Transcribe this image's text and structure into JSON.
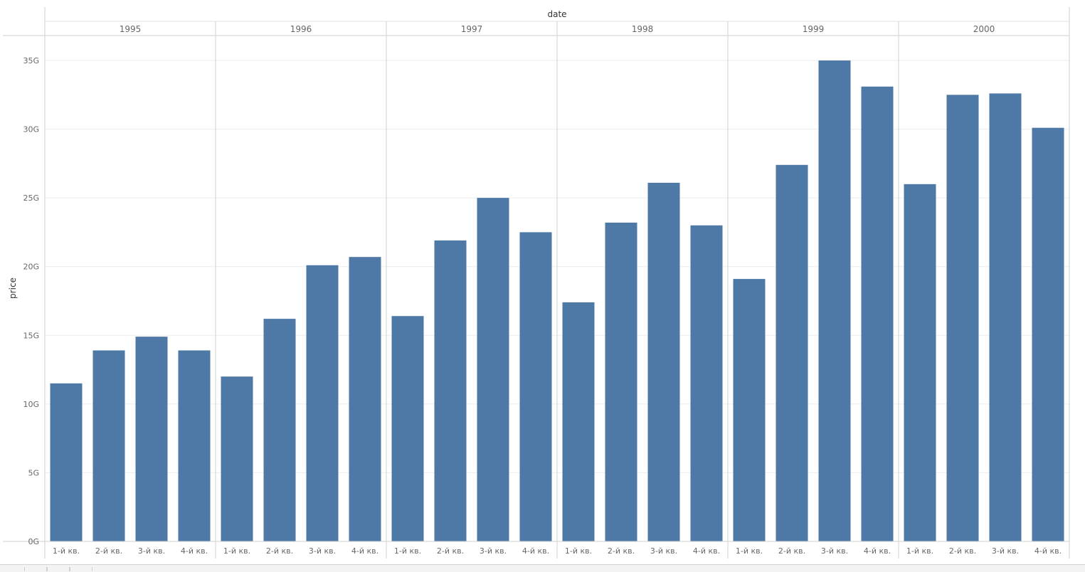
{
  "chart_data": {
    "type": "bar",
    "xlabel": "date",
    "ylabel": "price",
    "years": [
      "1995",
      "1996",
      "1997",
      "1998",
      "1999",
      "2000"
    ],
    "quarter_labels": [
      "1-й кв.",
      "2-й кв.",
      "3-й кв.",
      "4-й кв."
    ],
    "values": [
      11.5,
      13.9,
      14.9,
      13.9,
      12.0,
      16.2,
      20.1,
      20.7,
      16.4,
      21.9,
      25.0,
      22.5,
      17.4,
      23.2,
      26.1,
      23.0,
      19.1,
      27.4,
      35.0,
      33.1,
      26.0,
      32.5,
      32.6,
      30.1
    ],
    "value_unit": "G",
    "yticks": [
      "0G",
      "5G",
      "10G",
      "15G",
      "20G",
      "25G",
      "30G",
      "35G"
    ],
    "ylim": [
      0,
      36.5
    ],
    "grid": true,
    "bar_color": "#4e79a7"
  }
}
